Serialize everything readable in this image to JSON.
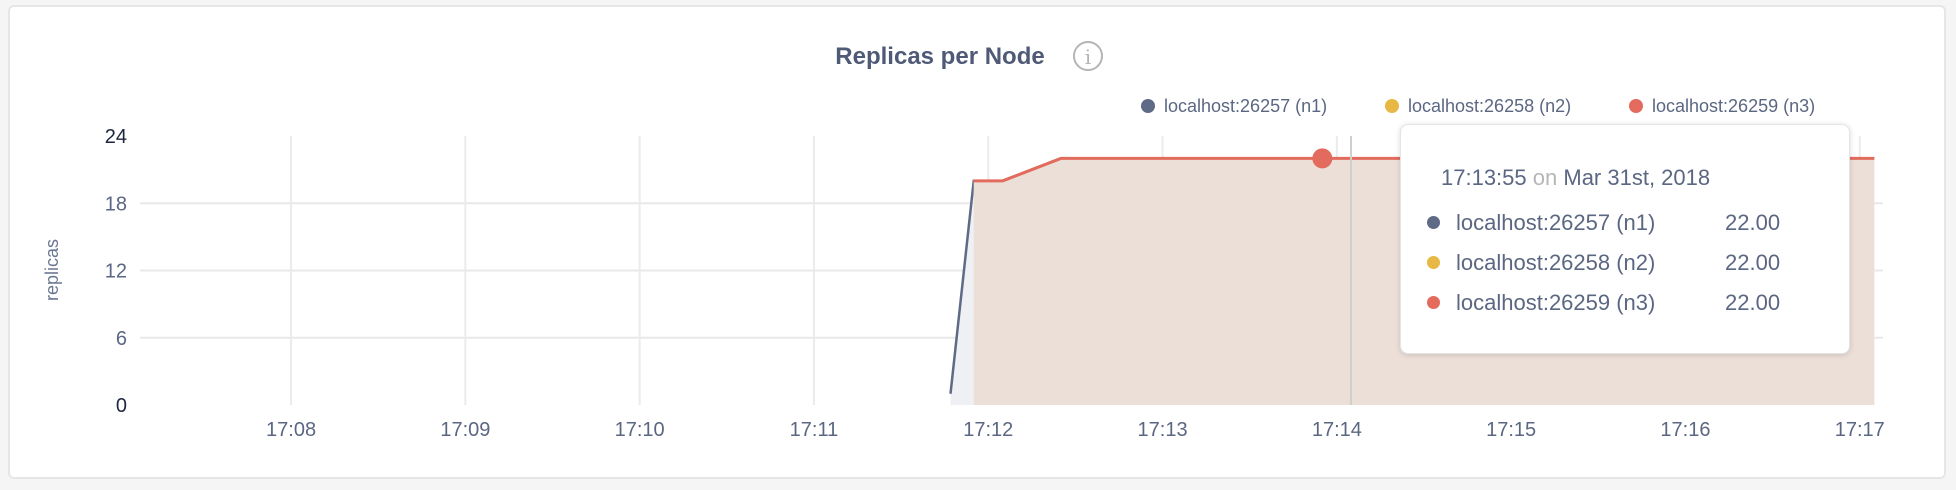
{
  "chart_data": {
    "type": "area",
    "title": "Replicas per Node",
    "info_icon": "info-icon",
    "xlabel": "",
    "ylabel": "replicas",
    "x_ticks": [
      "17:08",
      "17:09",
      "17:10",
      "17:11",
      "17:12",
      "17:13",
      "17:14",
      "17:15",
      "17:16",
      "17:17"
    ],
    "y_ticks": [
      "0",
      "6",
      "12",
      "18",
      "24"
    ],
    "ylim": [
      0,
      24
    ],
    "xlim": [
      "17:07:08",
      "17:17:08"
    ],
    "grid": true,
    "legend_position": "top-right",
    "series": [
      {
        "name": "localhost:26257 (n1)",
        "color": "#5f6a87",
        "fill": "#eef0f3",
        "points": [
          [
            "17:11:47",
            1
          ],
          [
            "17:11:55",
            20
          ],
          [
            "17:12:05",
            20
          ],
          [
            "17:12:25",
            22
          ],
          [
            "17:17:05",
            22
          ]
        ]
      },
      {
        "name": "localhost:26258 (n2)",
        "color": "#e8b844",
        "points": [
          [
            "17:11:55",
            20
          ],
          [
            "17:12:05",
            20
          ],
          [
            "17:12:25",
            22
          ],
          [
            "17:17:05",
            22
          ]
        ]
      },
      {
        "name": "localhost:26259 (n3)",
        "color": "#e26b5e",
        "fill": "#ecdfd7",
        "points": [
          [
            "17:11:55",
            20
          ],
          [
            "17:12:05",
            20
          ],
          [
            "17:12:25",
            22
          ],
          [
            "17:17:05",
            22
          ]
        ]
      }
    ],
    "hover_x": "17:13:55"
  },
  "tooltip": {
    "time": "17:13:55",
    "on": "on",
    "date": "Mar 31st, 2018",
    "rows": [
      {
        "label": "localhost:26257 (n1)",
        "value": "22.00",
        "color": "#5f6a87"
      },
      {
        "label": "localhost:26258 (n2)",
        "value": "22.00",
        "color": "#e8b844"
      },
      {
        "label": "localhost:26259 (n3)",
        "value": "22.00",
        "color": "#e26b5e"
      }
    ]
  }
}
